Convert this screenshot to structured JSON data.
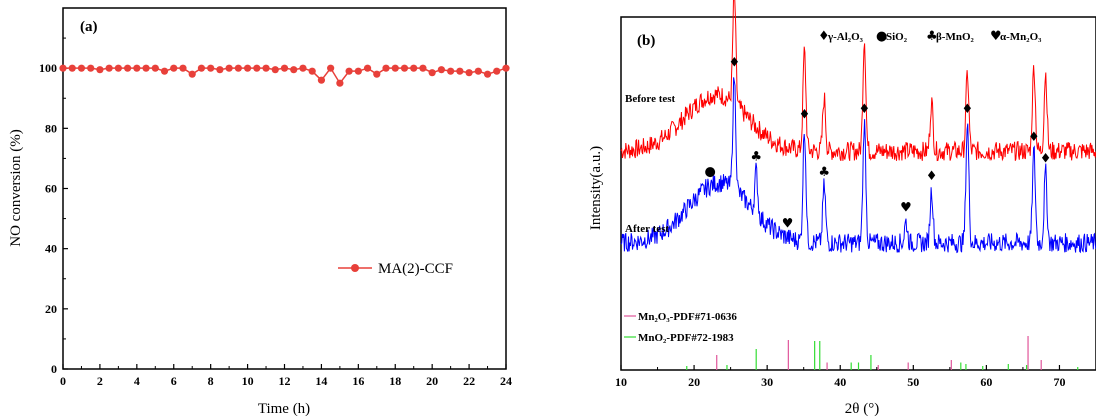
{
  "chart_data": [
    {
      "type": "line",
      "panel_label": "(a)",
      "xlabel": "Time (h)",
      "ylabel": "NO conversion (%)",
      "xlim": [
        0,
        24
      ],
      "ylim": [
        0,
        120
      ],
      "xticks": [
        0,
        2,
        4,
        6,
        8,
        10,
        12,
        14,
        16,
        18,
        20,
        22,
        24
      ],
      "yticks": [
        0,
        20,
        40,
        60,
        80,
        100
      ],
      "grid": false,
      "legend": "center-right",
      "series": [
        {
          "name": "MA(2)-CCF",
          "color": "#e8403a",
          "x": [
            0,
            0.5,
            1,
            1.5,
            2,
            2.5,
            3,
            3.5,
            4,
            4.5,
            5,
            5.5,
            6,
            6.5,
            7,
            7.5,
            8,
            8.5,
            9,
            9.5,
            10,
            10.5,
            11,
            11.5,
            12,
            12.5,
            13,
            13.5,
            14,
            14.5,
            15,
            15.5,
            16,
            16.5,
            17,
            17.5,
            18,
            18.5,
            19,
            19.5,
            20,
            20.5,
            21,
            21.5,
            22,
            22.5,
            23,
            23.5,
            24
          ],
          "y": [
            100,
            100,
            100,
            100,
            99.5,
            100,
            100,
            100,
            100,
            100,
            100,
            99,
            100,
            100,
            98,
            100,
            100,
            99.5,
            100,
            100,
            100,
            100,
            100,
            99.5,
            100,
            99.5,
            100,
            99,
            96,
            100,
            95,
            99,
            99,
            100,
            98,
            100,
            100,
            100,
            100,
            100,
            98.5,
            99.5,
            99,
            99,
            98.5,
            99,
            98,
            99,
            100
          ]
        }
      ]
    },
    {
      "type": "line",
      "panel_label": "(b)",
      "xlabel": "2θ (°)",
      "ylabel": "Intensity(a.u.)",
      "xlim": [
        10,
        75
      ],
      "xticks": [
        10,
        20,
        30,
        40,
        50,
        60,
        70
      ],
      "legend_items": [
        {
          "symbol": "♦",
          "label": "γ-Al₂O₃"
        },
        {
          "symbol": "●",
          "label": "SiO₂"
        },
        {
          "symbol": "♣",
          "label": "β-MnO₂"
        },
        {
          "symbol": "♥",
          "label": "α-Mn₂O₃"
        }
      ],
      "series": [
        {
          "name": "Before test",
          "color": "#ff0000",
          "base": 0.62,
          "hump": {
            "center": 23,
            "width": 6,
            "height": 0.16
          },
          "peaks": [
            [
              25.5,
              0.32
            ],
            [
              35.1,
              0.28
            ],
            [
              37.8,
              0.15
            ],
            [
              43.3,
              0.32
            ],
            [
              52.5,
              0.14
            ],
            [
              57.4,
              0.22
            ],
            [
              66.5,
              0.24
            ],
            [
              68.1,
              0.22
            ]
          ]
        },
        {
          "name": "After test",
          "color": "#0000ff",
          "base": 0.36,
          "hump": {
            "center": 23.5,
            "width": 6,
            "height": 0.17
          },
          "peaks": [
            [
              25.5,
              0.32
            ],
            [
              28.5,
              0.12
            ],
            [
              35.1,
              0.32
            ],
            [
              37.8,
              0.16
            ],
            [
              43.3,
              0.34
            ],
            [
              49,
              0.06
            ],
            [
              52.5,
              0.15
            ],
            [
              57.4,
              0.34
            ],
            [
              66.5,
              0.26
            ],
            [
              68.1,
              0.2
            ]
          ]
        }
      ],
      "peak_markers": [
        {
          "x": 22.2,
          "symbol": "●"
        },
        {
          "x": 25.5,
          "symbol": "♦"
        },
        {
          "x": 28.5,
          "symbol": "♣"
        },
        {
          "x": 32.8,
          "symbol": "♥"
        },
        {
          "x": 35.1,
          "symbol": "♦"
        },
        {
          "x": 37.8,
          "symbol": "♣"
        },
        {
          "x": 43.3,
          "symbol": "♦"
        },
        {
          "x": 49,
          "symbol": "♥"
        },
        {
          "x": 52.5,
          "symbol": "♦"
        },
        {
          "x": 57.4,
          "symbol": "♦"
        },
        {
          "x": 66.5,
          "symbol": "♦"
        },
        {
          "x": 68.1,
          "symbol": "♦"
        }
      ],
      "references": [
        {
          "label": "Mn₂O₃-PDF#71-0636",
          "color": "#e0559a",
          "lines": [
            [
              23.1,
              0.3
            ],
            [
              32.9,
              0.6
            ],
            [
              38.2,
              0.15
            ],
            [
              45.2,
              0.1
            ],
            [
              49.3,
              0.15
            ],
            [
              55.2,
              0.2
            ],
            [
              65.7,
              0.68
            ],
            [
              67.5,
              0.2
            ]
          ]
        },
        {
          "label": "MnO₂-PDF#72-1983",
          "color": "#33dd33",
          "lines": [
            [
              19,
              0.08
            ],
            [
              24.5,
              0.1
            ],
            [
              28.5,
              0.42
            ],
            [
              36.5,
              0.58
            ],
            [
              37.2,
              0.58
            ],
            [
              41.5,
              0.15
            ],
            [
              42.5,
              0.15
            ],
            [
              44.2,
              0.3
            ],
            [
              56.5,
              0.15
            ],
            [
              57.2,
              0.12
            ],
            [
              59.5,
              0.08
            ],
            [
              63,
              0.12
            ],
            [
              65.5,
              0.1
            ],
            [
              72.5,
              0.06
            ]
          ]
        }
      ]
    }
  ]
}
